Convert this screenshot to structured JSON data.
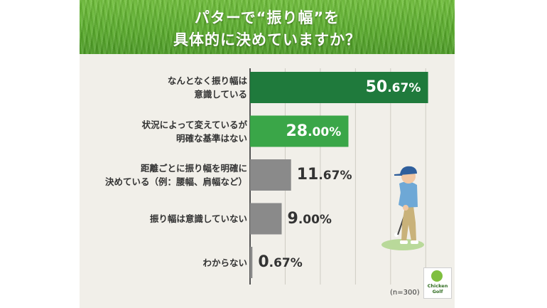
{
  "title_line1": "パターで“振り幅”を",
  "title_line2": "具体的に決めていますか？",
  "note": "(n=300)",
  "logo": {
    "line1": "Chicken",
    "line2": "Golf"
  },
  "colors": {
    "banner": "#5aad2c",
    "bar_dark_green": "#1f7a3c",
    "bar_green": "#3aa648",
    "bar_gray": "#8a8a8a",
    "panel_bg": "#f1efe9"
  },
  "chart_data": {
    "type": "bar",
    "orientation": "horizontal",
    "unit": "%",
    "xlim": [
      0,
      55
    ],
    "grid": true,
    "categories": [
      [
        "なんとなく振り幅は",
        "意識している"
      ],
      [
        "状況によって変えているが",
        "明確な基準はない"
      ],
      [
        "距離ごとに振り幅を明確に",
        "決めている（例：腰幅、肩幅など）"
      ],
      [
        "振り幅は意識していない"
      ],
      [
        "わからない"
      ]
    ],
    "values": [
      50.67,
      28.0,
      11.67,
      9.0,
      0.67
    ],
    "labels": [
      {
        "int": "50",
        "dec": ".67%"
      },
      {
        "int": "28",
        "dec": ".00%"
      },
      {
        "int": "11",
        "dec": ".67%"
      },
      {
        "int": "9",
        "dec": ".00%"
      },
      {
        "int": "0",
        "dec": ".67%"
      }
    ],
    "bar_colors": [
      "#1f7a3c",
      "#3aa648",
      "#8a8a8a",
      "#8a8a8a",
      "#8a8a8a"
    ],
    "label_inside": [
      true,
      true,
      false,
      false,
      false
    ]
  }
}
